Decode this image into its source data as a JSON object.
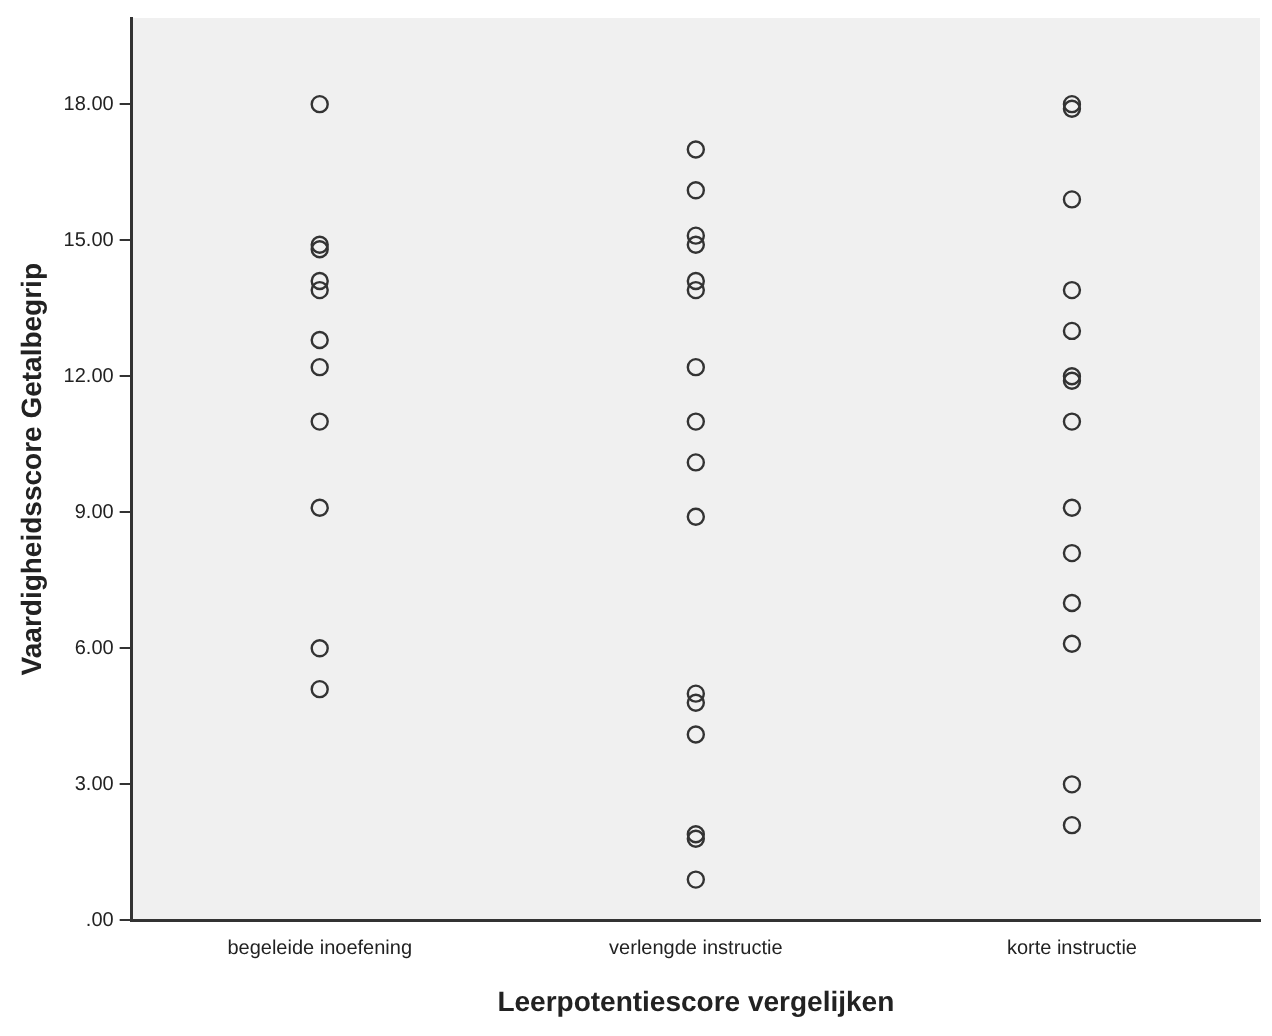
{
  "chart_data": {
    "type": "scatter",
    "xlabel": "Leerpotentiescore vergelijken",
    "ylabel": "Vaardigheidsscore Getalbegrip",
    "categories": [
      "begeleide inoefening",
      "verlengde instructie",
      "korte instructie"
    ],
    "ylim": [
      0,
      19.9
    ],
    "yticks": [
      {
        "value": 0,
        "label": ".00"
      },
      {
        "value": 3,
        "label": "3.00"
      },
      {
        "value": 6,
        "label": "6.00"
      },
      {
        "value": 9,
        "label": "9.00"
      },
      {
        "value": 12,
        "label": "12.00"
      },
      {
        "value": 15,
        "label": "15.00"
      },
      {
        "value": 18,
        "label": "18.00"
      }
    ],
    "grid": false,
    "legend": false,
    "marker": "circle",
    "series": [
      {
        "color": "#333333",
        "x": [
          "begeleide inoefening",
          "begeleide inoefening",
          "begeleide inoefening",
          "begeleide inoefening",
          "begeleide inoefening",
          "begeleide inoefening",
          "begeleide inoefening",
          "begeleide inoefening",
          "begeleide inoefening",
          "begeleide inoefening",
          "begeleide inoefening",
          "verlengde instructie",
          "verlengde instructie",
          "verlengde instructie",
          "verlengde instructie",
          "verlengde instructie",
          "verlengde instructie",
          "verlengde instructie",
          "verlengde instructie",
          "verlengde instructie",
          "verlengde instructie",
          "verlengde instructie",
          "verlengde instructie",
          "verlengde instructie",
          "verlengde instructie",
          "verlengde instructie",
          "verlengde instructie",
          "korte instructie",
          "korte instructie",
          "korte instructie",
          "korte instructie",
          "korte instructie",
          "korte instructie",
          "korte instructie",
          "korte instructie",
          "korte instructie",
          "korte instructie",
          "korte instructie",
          "korte instructie",
          "korte instructie",
          "korte instructie"
        ],
        "values": [
          18,
          14.9,
          14.8,
          14.1,
          13.9,
          12.8,
          12.2,
          11,
          9.1,
          6,
          5.1,
          17,
          16.1,
          15.1,
          14.9,
          14.1,
          13.9,
          12.2,
          11,
          10.1,
          8.9,
          5,
          4.8,
          4.1,
          1.9,
          1.8,
          0.9,
          18,
          17.9,
          15.9,
          13.9,
          13,
          12,
          11.9,
          11,
          9.1,
          8.1,
          7,
          6.1,
          3,
          2.1
        ]
      }
    ]
  }
}
